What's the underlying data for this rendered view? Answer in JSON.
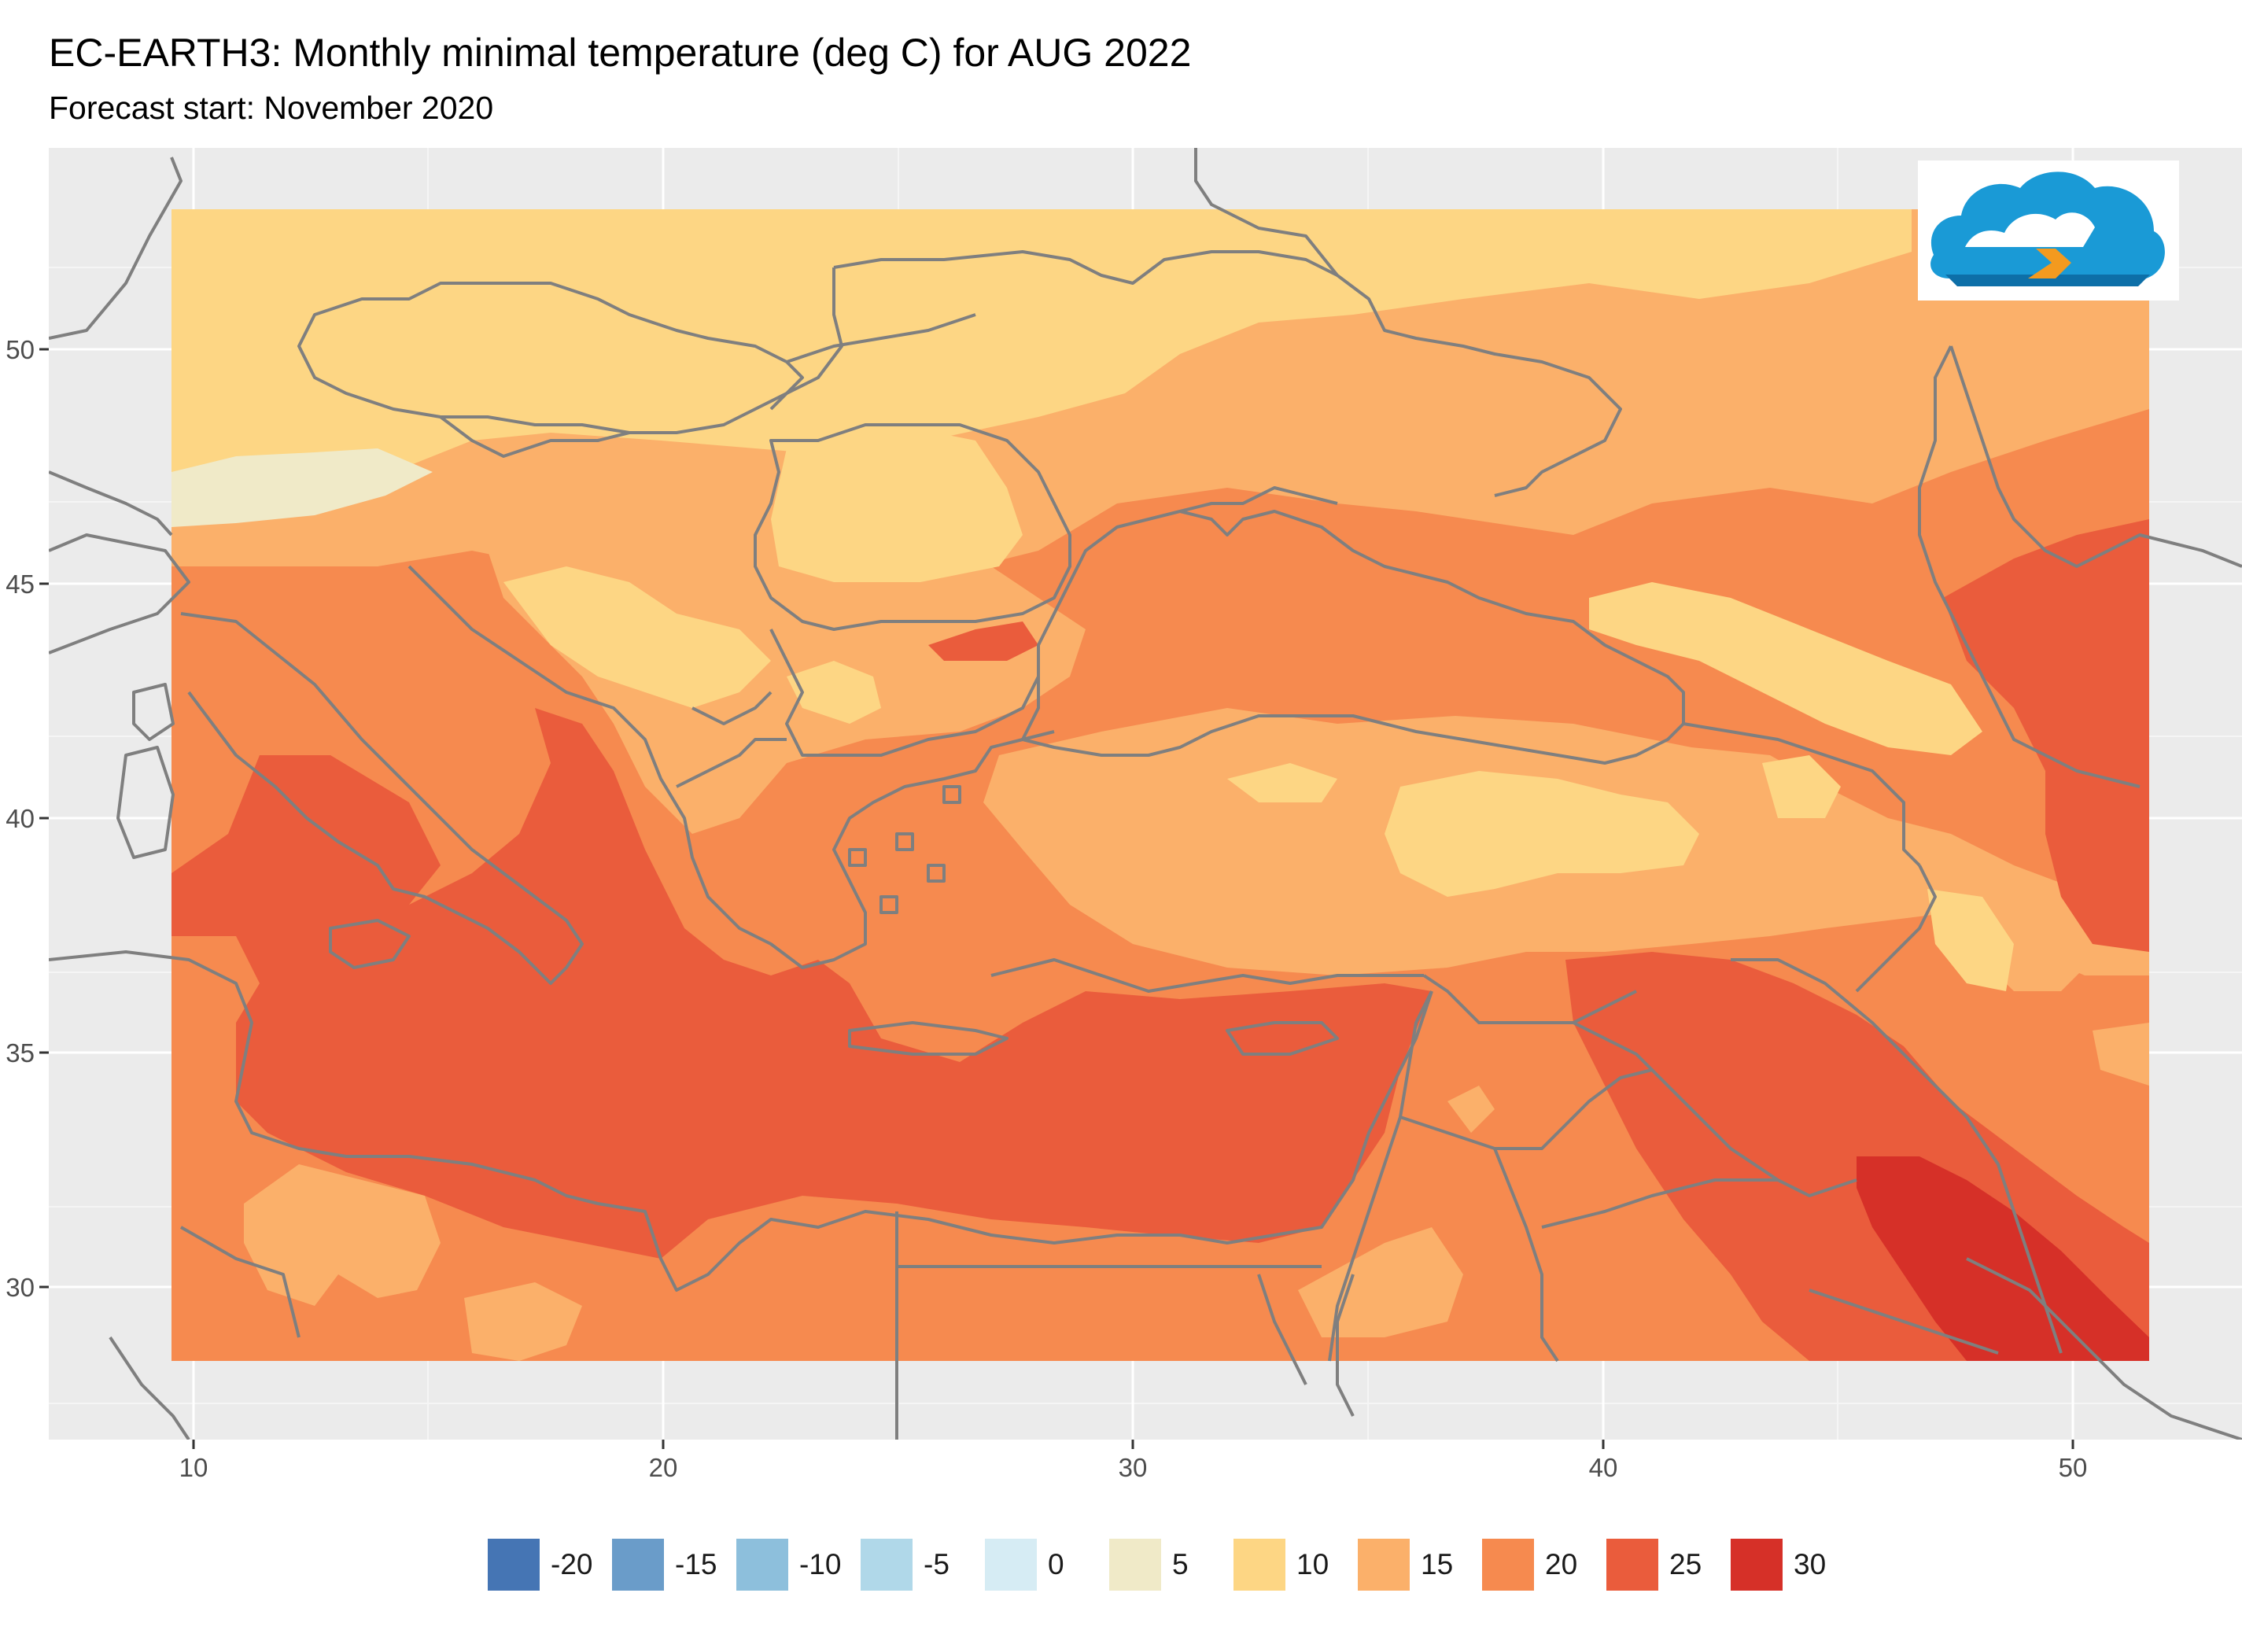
{
  "title": "EC-EARTH3: Monthly minimal temperature (deg C) for AUG 2022",
  "subtitle": "Forecast start: November 2020",
  "map": {
    "x_ticks": [
      "10",
      "20",
      "30",
      "40",
      "50"
    ],
    "y_ticks": [
      "30",
      "35",
      "40",
      "45",
      "50"
    ],
    "panel_color": "#ebebeb",
    "gridline_color": "#ffffff",
    "border_color": "#808080",
    "variable": "Monthly minimal temperature",
    "unit": "deg C",
    "month": "AUG 2022",
    "regions": [
      {
        "name": "northern band (Poland, Belarus, Ukraine north)",
        "class": "10"
      },
      {
        "name": "Alps",
        "class": "5"
      },
      {
        "name": "Carpathians / Transylvania",
        "class": "10"
      },
      {
        "name": "Dinaric Alps",
        "class": "10"
      },
      {
        "name": "Anatolian plateau",
        "class": "10"
      },
      {
        "name": "Caucasus",
        "class": "10"
      },
      {
        "name": "Zagros north",
        "class": "10"
      },
      {
        "name": "Ukraine south / Russia south",
        "class": "15"
      },
      {
        "name": "Black Sea",
        "class": "20"
      },
      {
        "name": "Western Mediterranean",
        "class": "25"
      },
      {
        "name": "Central & Eastern Mediterranean",
        "class": "25"
      },
      {
        "name": "Caspian coast",
        "class": "25"
      },
      {
        "name": "Mesopotamia",
        "class": "25"
      },
      {
        "name": "Persian Gulf head",
        "class": "30"
      },
      {
        "name": "Libyan / Egyptian desert",
        "class": "20"
      },
      {
        "name": "Saharan highlands",
        "class": "15"
      }
    ]
  },
  "legend": {
    "items": [
      {
        "label": "-20",
        "color": "#4575b4"
      },
      {
        "label": "-15",
        "color": "#6a9cc9"
      },
      {
        "label": "-10",
        "color": "#8dbfdc"
      },
      {
        "label": "-5",
        "color": "#b0d8e9"
      },
      {
        "label": "0",
        "color": "#d6ecf4"
      },
      {
        "label": "5",
        "color": "#f0eac8"
      },
      {
        "label": "10",
        "color": "#fdd684"
      },
      {
        "label": "15",
        "color": "#fbb06a"
      },
      {
        "label": "20",
        "color": "#f68a4f"
      },
      {
        "label": "25",
        "color": "#ea5c3c"
      },
      {
        "label": "30",
        "color": "#d63028"
      }
    ]
  },
  "logo": {
    "name": "cloud-logo",
    "colors": [
      "#1a9ad6",
      "#0d6fa8",
      "#f39a1f"
    ]
  }
}
